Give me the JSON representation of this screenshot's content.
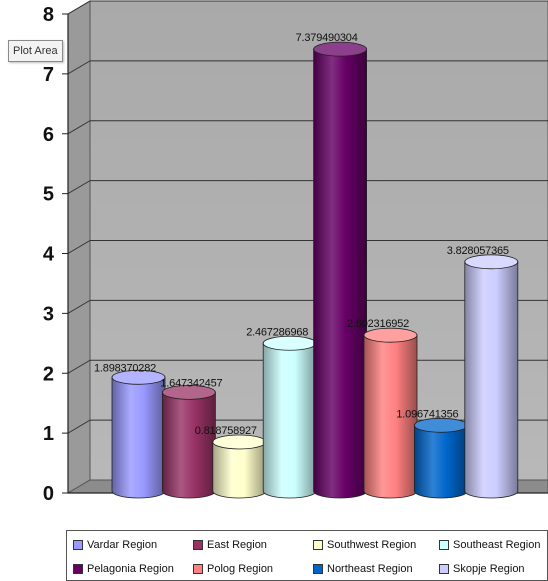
{
  "tooltip": "Plot Area",
  "chart_data": {
    "type": "bar",
    "title": "",
    "xlabel": "",
    "ylabel": "",
    "ylim": [
      0,
      8
    ],
    "yticks": [
      "0",
      "1",
      "2",
      "3",
      "4",
      "5",
      "6",
      "7",
      "8"
    ],
    "grid": true,
    "legend_position": "bottom",
    "categories": [
      "Vardar Region",
      "East Region",
      "Southwest Region",
      "Southeast Region",
      "Pelagonia Region",
      "Polog Region",
      "Northeast Region",
      "Skopje Region"
    ],
    "values": [
      1.898370282,
      1.647342457,
      0.818758927,
      2.467286968,
      7.379490304,
      2.602316952,
      1.096741356,
      3.828057365
    ],
    "data_labels": [
      "1.898370282",
      "1.647342457",
      "0.818758927",
      "2.467286968",
      "7.379490304",
      "2.602316952",
      "1.096741356",
      "3.828057365"
    ],
    "colors": [
      "#9999ff",
      "#993366",
      "#ffffcc",
      "#ccffff",
      "#660066",
      "#ff8080",
      "#0066cc",
      "#ccccff"
    ]
  }
}
